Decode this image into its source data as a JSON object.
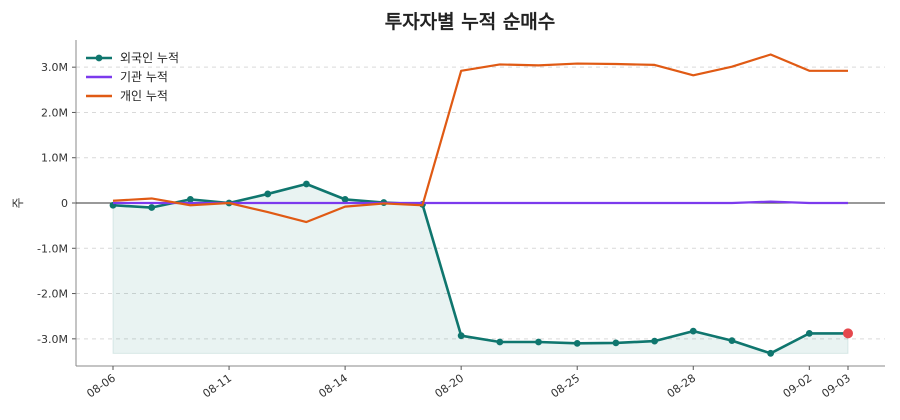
{
  "chart_data": {
    "type": "line",
    "title": "투자자별 누적 순매수",
    "xlabel": "",
    "ylabel": "주",
    "ylim": [
      -3600000,
      3600000
    ],
    "yticks": [
      {
        "value": 3000000,
        "label": "3.0M"
      },
      {
        "value": 2000000,
        "label": "2.0M"
      },
      {
        "value": 1000000,
        "label": "1.0M"
      },
      {
        "value": 0,
        "label": "0"
      },
      {
        "value": -1000000,
        "label": "-1.0M"
      },
      {
        "value": -2000000,
        "label": "-2.0M"
      },
      {
        "value": -3000000,
        "label": "-3.0M"
      }
    ],
    "x": [
      "08-06",
      "08-07",
      "08-08",
      "08-11",
      "08-12",
      "08-13",
      "08-14",
      "08-18",
      "08-19",
      "08-20",
      "08-21",
      "08-22",
      "08-25",
      "08-26",
      "08-27",
      "08-28",
      "08-29",
      "09-01",
      "09-02",
      "09-03"
    ],
    "xticks": [
      "08-06",
      "08-11",
      "08-14",
      "08-20",
      "08-25",
      "08-28",
      "09-02",
      "09-03"
    ],
    "grid": "y-dashed",
    "legend": "top-left",
    "zero_line": true,
    "series": [
      {
        "name": "외국인 누적",
        "color": "#0f766e",
        "markers": true,
        "fill": true,
        "highlight_last_color": "#e5484d",
        "values": [
          -50000,
          -100000,
          80000,
          0,
          200000,
          420000,
          80000,
          10000,
          -30000,
          -2930000,
          -3070000,
          -3070000,
          -3100000,
          -3090000,
          -3050000,
          -2830000,
          -3040000,
          -3320000,
          -2880000,
          -2880000
        ]
      },
      {
        "name": "기관 누적",
        "color": "#7c3aed",
        "markers": false,
        "values": [
          0,
          0,
          0,
          0,
          0,
          0,
          0,
          0,
          0,
          0,
          0,
          0,
          0,
          0,
          0,
          0,
          0,
          30000,
          0,
          0
        ]
      },
      {
        "name": "개인 누적",
        "color": "#e05a14",
        "markers": false,
        "values": [
          50000,
          100000,
          -50000,
          0,
          -200000,
          -420000,
          -80000,
          -10000,
          -50000,
          2920000,
          3060000,
          3040000,
          3080000,
          3070000,
          3050000,
          2820000,
          3010000,
          3280000,
          2920000,
          2920000
        ]
      }
    ]
  }
}
